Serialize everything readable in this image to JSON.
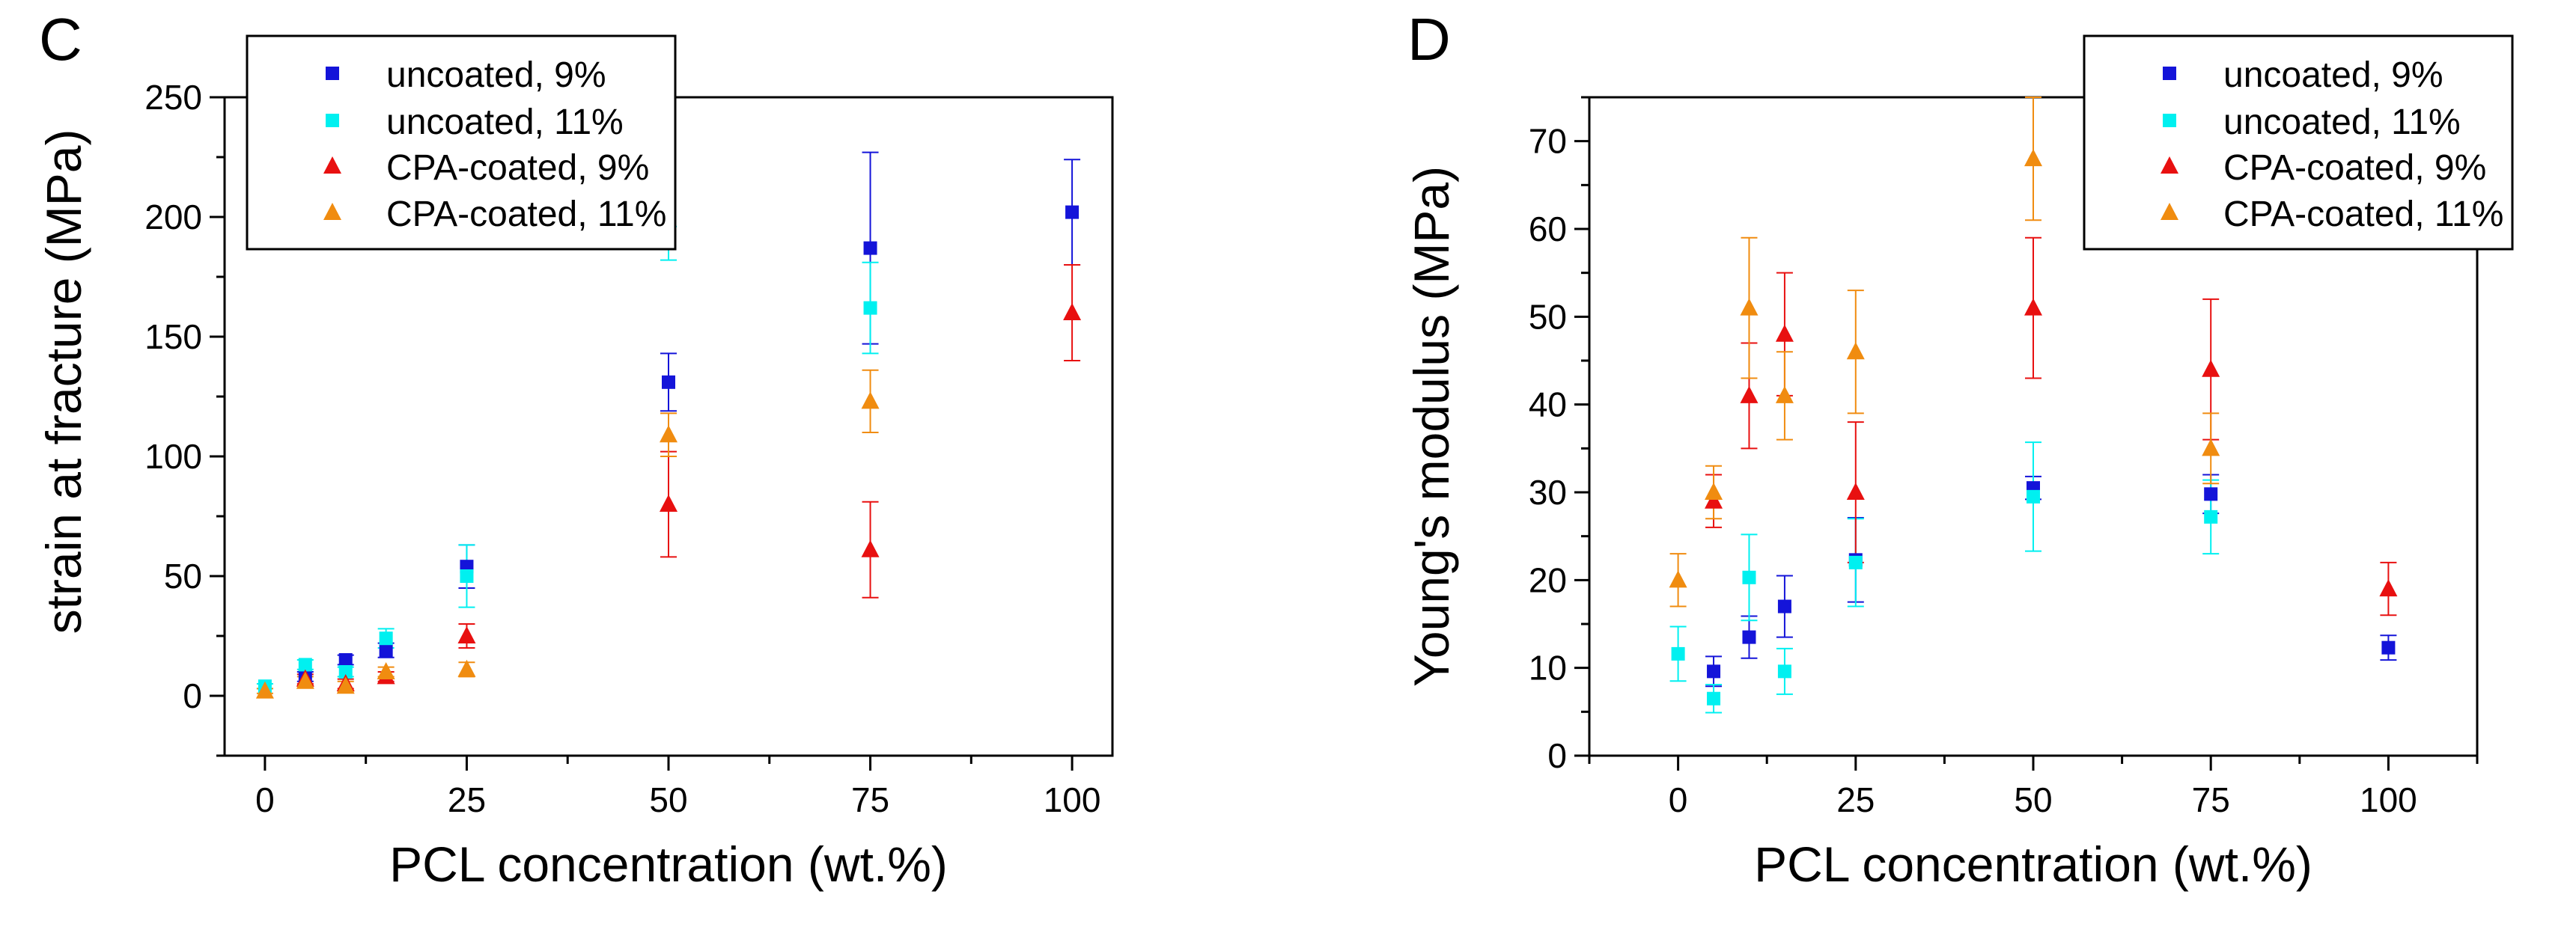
{
  "colors": {
    "uncoated_9": "#1414d9",
    "uncoated_11": "#00f0f0",
    "cpa_9": "#e81010",
    "cpa_11": "#f08c10",
    "axis": "#000000"
  },
  "chart_data": [
    {
      "type": "scatter",
      "panel_label": "C",
      "xlabel": "PCL concentration (wt.%)",
      "ylabel": "strain at fracture (MPa)",
      "xlim": [
        -5,
        105
      ],
      "ylim": [
        -25,
        250
      ],
      "x_ticks": [
        0,
        25,
        50,
        75,
        100
      ],
      "x_tick_labels": [
        "0",
        "25",
        "50",
        "75",
        "100"
      ],
      "y_ticks": [
        0,
        50,
        100,
        150,
        200,
        250
      ],
      "y_tick_labels": [
        "0",
        "50",
        "100",
        "150",
        "200",
        "250"
      ],
      "grid": false,
      "legend_position": "top-left",
      "series": [
        {
          "name": "uncoated, 9%",
          "marker": "square",
          "color": "#1414d9",
          "points": [
            {
              "x": 5,
              "y": 8,
              "err": 2
            },
            {
              "x": 10,
              "y": 15,
              "err": 2
            },
            {
              "x": 15,
              "y": 19,
              "err": 3
            },
            {
              "x": 25,
              "y": 54,
              "err": 9
            },
            {
              "x": 50,
              "y": 131,
              "err": 12
            },
            {
              "x": 75,
              "y": 187,
              "err": 40
            },
            {
              "x": 100,
              "y": 202,
              "err": 22
            }
          ]
        },
        {
          "name": "uncoated, 11%",
          "marker": "square",
          "color": "#00f0f0",
          "points": [
            {
              "x": 0,
              "y": 4,
              "err": 1
            },
            {
              "x": 5,
              "y": 13,
              "err": 2
            },
            {
              "x": 10,
              "y": 10,
              "err": 2
            },
            {
              "x": 15,
              "y": 24,
              "err": 4
            },
            {
              "x": 25,
              "y": 50,
              "err": 13
            },
            {
              "x": 50,
              "y": 189,
              "err": 7
            },
            {
              "x": 75,
              "y": 162,
              "err": 19
            }
          ]
        },
        {
          "name": "CPA-coated, 9%",
          "marker": "triangle",
          "color": "#e81010",
          "points": [
            {
              "x": 5,
              "y": 7,
              "err": 2
            },
            {
              "x": 10,
              "y": 5,
              "err": 2
            },
            {
              "x": 15,
              "y": 8,
              "err": 2
            },
            {
              "x": 25,
              "y": 25,
              "err": 5
            },
            {
              "x": 50,
              "y": 80,
              "err": 22
            },
            {
              "x": 75,
              "y": 61,
              "err": 20
            },
            {
              "x": 100,
              "y": 160,
              "err": 20
            }
          ]
        },
        {
          "name": "CPA-coated, 11%",
          "marker": "triangle",
          "color": "#f08c10",
          "points": [
            {
              "x": 0,
              "y": 2,
              "err": 1
            },
            {
              "x": 5,
              "y": 6,
              "err": 2
            },
            {
              "x": 10,
              "y": 4,
              "err": 2
            },
            {
              "x": 15,
              "y": 10,
              "err": 2
            },
            {
              "x": 25,
              "y": 11,
              "err": 3
            },
            {
              "x": 50,
              "y": 109,
              "err": 9
            },
            {
              "x": 75,
              "y": 123,
              "err": 13
            }
          ]
        }
      ]
    },
    {
      "type": "scatter",
      "panel_label": "D",
      "xlabel": "PCL concentration (wt.%)",
      "ylabel": "Young's modulus (MPa)",
      "xlim": [
        -12.5,
        112.5
      ],
      "ylim": [
        0,
        75
      ],
      "x_ticks": [
        0,
        25,
        50,
        75,
        100
      ],
      "x_tick_labels": [
        "0",
        "25",
        "50",
        "75",
        "100"
      ],
      "y_ticks": [
        0,
        10,
        20,
        30,
        40,
        50,
        60,
        70
      ],
      "y_tick_labels": [
        "0",
        "10",
        "20",
        "30",
        "40",
        "50",
        "60",
        "70"
      ],
      "grid": false,
      "legend_position": "top-right",
      "series": [
        {
          "name": "uncoated, 9%",
          "marker": "square",
          "color": "#1414d9",
          "points": [
            {
              "x": 5,
              "y": 9.6,
              "err": 1.7
            },
            {
              "x": 10,
              "y": 13.5,
              "err": 2.4
            },
            {
              "x": 15,
              "y": 17,
              "err": 3.5
            },
            {
              "x": 25,
              "y": 22.3,
              "err": 4.8
            },
            {
              "x": 50,
              "y": 30.5,
              "err": 1.3
            },
            {
              "x": 75,
              "y": 29.8,
              "err": 2.2
            },
            {
              "x": 100,
              "y": 12.3,
              "err": 1.4
            }
          ]
        },
        {
          "name": "uncoated, 11%",
          "marker": "square",
          "color": "#00f0f0",
          "points": [
            {
              "x": 0,
              "y": 11.6,
              "err": 3.1
            },
            {
              "x": 5,
              "y": 6.5,
              "err": 1.6
            },
            {
              "x": 10,
              "y": 20.3,
              "err": 4.9
            },
            {
              "x": 15,
              "y": 9.6,
              "err": 2.6
            },
            {
              "x": 25,
              "y": 22,
              "err": 5
            },
            {
              "x": 50,
              "y": 29.5,
              "err": 6.2
            },
            {
              "x": 75,
              "y": 27.2,
              "err": 4.2
            }
          ]
        },
        {
          "name": "CPA-coated, 9%",
          "marker": "triangle",
          "color": "#e81010",
          "points": [
            {
              "x": 5,
              "y": 29,
              "err": 3
            },
            {
              "x": 10,
              "y": 41,
              "err": 6
            },
            {
              "x": 15,
              "y": 48,
              "err": 7
            },
            {
              "x": 25,
              "y": 30,
              "err": 8
            },
            {
              "x": 50,
              "y": 51,
              "err": 8
            },
            {
              "x": 75,
              "y": 44,
              "err": 8
            },
            {
              "x": 100,
              "y": 19,
              "err": 3
            }
          ]
        },
        {
          "name": "CPA-coated, 11%",
          "marker": "triangle",
          "color": "#f08c10",
          "points": [
            {
              "x": 0,
              "y": 20,
              "err": 3
            },
            {
              "x": 5,
              "y": 30,
              "err": 3
            },
            {
              "x": 10,
              "y": 51,
              "err": 8
            },
            {
              "x": 15,
              "y": 41,
              "err": 5
            },
            {
              "x": 25,
              "y": 46,
              "err": 7
            },
            {
              "x": 50,
              "y": 68,
              "err": 7
            },
            {
              "x": 75,
              "y": 35,
              "err": 4
            }
          ]
        }
      ]
    }
  ]
}
